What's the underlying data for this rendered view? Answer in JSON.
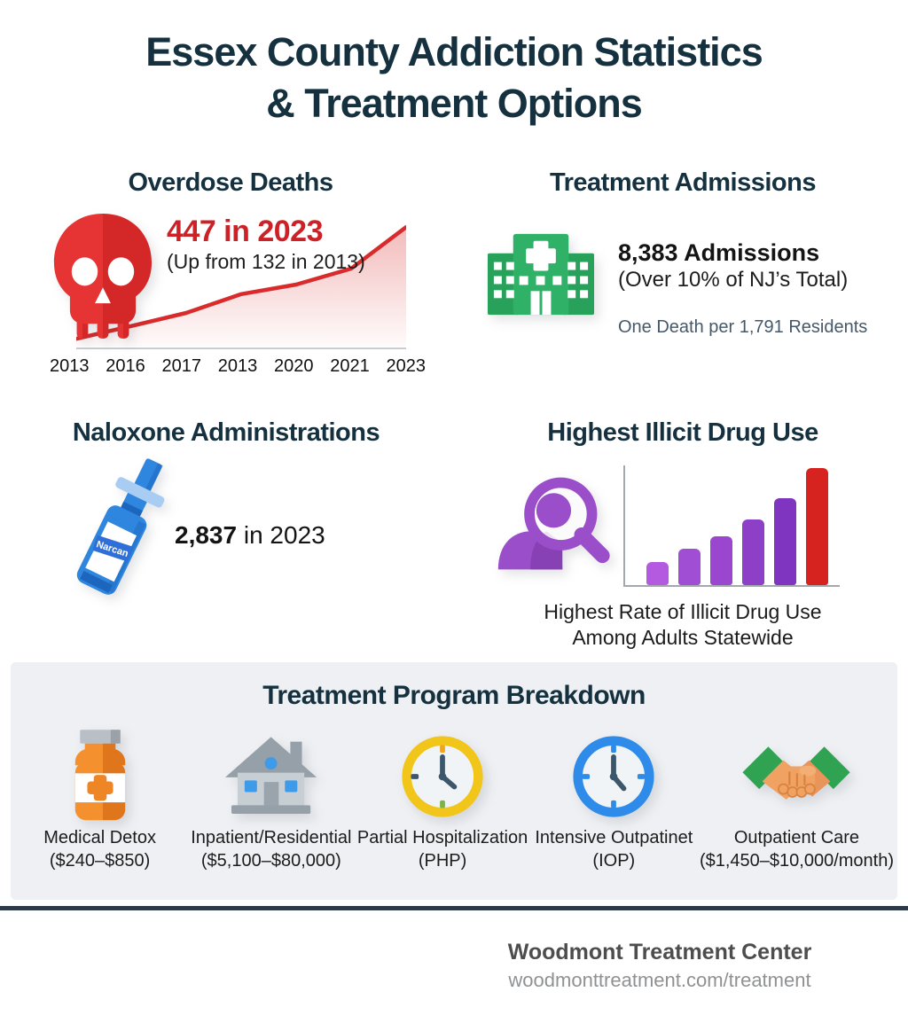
{
  "page": {
    "title_line1": "Essex County Addiction Statistics",
    "title_line2": "& Treatment Options"
  },
  "overdose": {
    "title": "Overdose Deaths",
    "stat": "447 in 2023",
    "stat_note": "(Up from 132 in 2013)",
    "x_labels": [
      "2013",
      "2016",
      "2017",
      "2013",
      "2020",
      "2021",
      "2023"
    ]
  },
  "admissions": {
    "title": "Treatment Admissions",
    "stat": "8,383 Admissions",
    "stat_note": "(Over 10% of NJ’s Total)",
    "sub_note": "One Death per 1,791 Residents"
  },
  "naloxone": {
    "title": "Naloxone Administrations",
    "stat_bold": "2,837",
    "stat_rest": " in 2023",
    "icon_label": "Narcan"
  },
  "illicit": {
    "title": "Highest Illicit Drug Use",
    "caption_line1": "Highest Rate of Illicit Drug Use",
    "caption_line2": "Among Adults Statewide"
  },
  "programs": {
    "title": "Treatment Program Breakdown",
    "items": [
      {
        "name": "Medical Detox",
        "detail": "($240–$850)",
        "icon": "pill-bottle-icon"
      },
      {
        "name": "Inpatient/Residential",
        "detail": "($5,100–$80,000)",
        "icon": "house-icon"
      },
      {
        "name": "Partial Hospitalization",
        "detail": "(PHP)",
        "icon": "clock-yellow-icon"
      },
      {
        "name": "Intensive Outpatinet",
        "detail": "(IOP)",
        "icon": "clock-blue-icon"
      },
      {
        "name": "Outpatient Care",
        "detail": "($1,450–$10,000/month)",
        "icon": "handshake-icon"
      }
    ]
  },
  "footer": {
    "org": "Woodmont Treatment Center",
    "url": "woodmonttreatment.com/treatment"
  },
  "colors": {
    "title_navy": "#15303e",
    "red": "#d92b2b",
    "stat_red": "#cc2127",
    "green": "#2aa75f",
    "purple": "#9b4ec9",
    "narcan_blue": "#2f86df",
    "slate_note": "#46586a",
    "panel_gray": "#eef0f3",
    "footer_line": "#2d3947"
  },
  "chart_data": [
    {
      "id": "overdose-trend",
      "type": "area",
      "title": "Overdose Deaths",
      "categories": [
        "2013",
        "2016",
        "2017",
        "2013",
        "2020",
        "2021",
        "2023"
      ],
      "values_estimated": [
        132,
        168,
        205,
        258,
        285,
        330,
        447
      ],
      "known_points": {
        "2013": 132,
        "2023": 447
      },
      "ylim": [
        110,
        460
      ],
      "line_color": "#d92b2b",
      "fill_top": "rgba(217,43,43,0.32)",
      "fill_bottom": "rgba(217,43,43,0.02)",
      "grid": false,
      "legend": "none"
    },
    {
      "id": "illicit-bars",
      "type": "bar",
      "title": "Highest Rate of Illicit Drug Use Among Adults Statewide",
      "categories": [
        "",
        "",
        "",
        "",
        "",
        ""
      ],
      "values_relative": [
        20,
        31,
        42,
        56,
        74,
        100
      ],
      "bar_colors": [
        "#b35ae0",
        "#a04fd4",
        "#9a46cf",
        "#8e3fc7",
        "#7f35c0",
        "#d7231f"
      ],
      "ylim": [
        0,
        100
      ],
      "grid": false,
      "legend": "none"
    }
  ]
}
